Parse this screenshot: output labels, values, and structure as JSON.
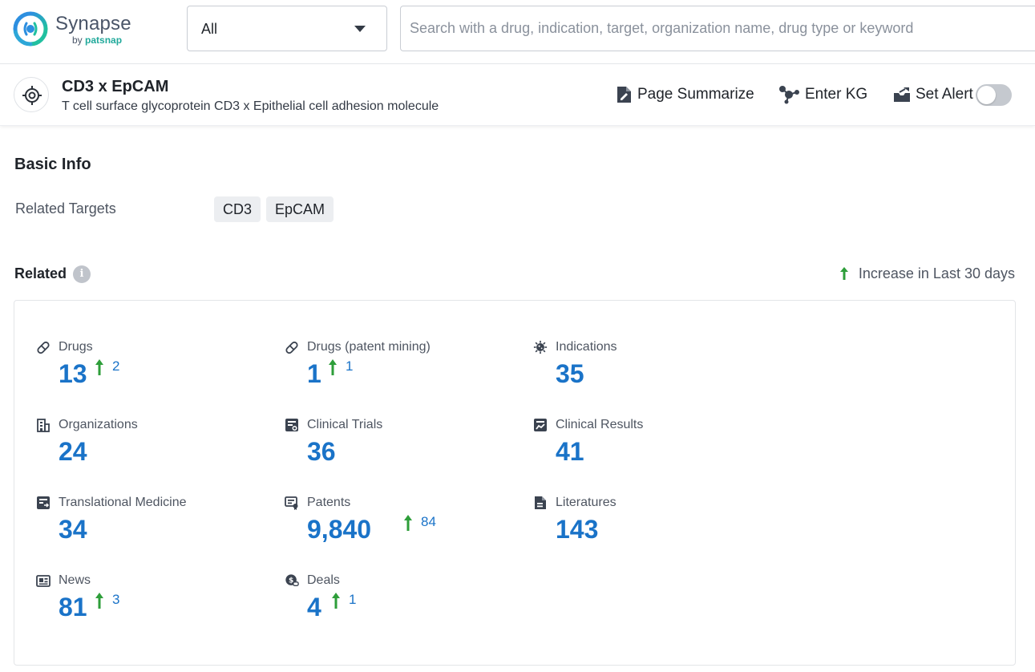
{
  "header": {
    "brand_name": "Synapse",
    "brand_by": "by",
    "brand_vendor": "patsnap",
    "scope_value": "All",
    "search_placeholder": "Search with a drug, indication, target, organization name, drug type or keyword"
  },
  "entity": {
    "title": "CD3 x EpCAM",
    "subtitle": "T cell surface glycoprotein CD3 x Epithelial cell adhesion molecule",
    "actions": {
      "summarize": "Page Summarize",
      "kg": "Enter KG",
      "alert": "Set Alert"
    },
    "alert_enabled": false
  },
  "basic_info": {
    "title": "Basic Info",
    "related_targets_label": "Related Targets",
    "targets": [
      "CD3",
      "EpCAM"
    ]
  },
  "related": {
    "title": "Related",
    "legend": "Increase in Last 30 days",
    "stats": [
      {
        "label": "Drugs",
        "value": "13",
        "increase": "2",
        "icon": "pill-icon"
      },
      {
        "label": "Drugs (patent mining)",
        "value": "1",
        "increase": "1",
        "icon": "pill-icon"
      },
      {
        "label": "Indications",
        "value": "35",
        "increase": null,
        "icon": "virus-icon"
      },
      {
        "label": "Organizations",
        "value": "24",
        "increase": null,
        "icon": "building-icon"
      },
      {
        "label": "Clinical Trials",
        "value": "36",
        "increase": null,
        "icon": "clipboard-icon"
      },
      {
        "label": "Clinical Results",
        "value": "41",
        "increase": null,
        "icon": "results-icon"
      },
      {
        "label": "Translational Medicine",
        "value": "34",
        "increase": null,
        "icon": "translational-icon"
      },
      {
        "label": "Patents",
        "value": "9,840",
        "increase": "84",
        "icon": "patent-icon"
      },
      {
        "label": "Literatures",
        "value": "143",
        "increase": null,
        "icon": "document-icon"
      },
      {
        "label": "News",
        "value": "81",
        "increase": "3",
        "icon": "news-icon"
      },
      {
        "label": "Deals",
        "value": "4",
        "increase": "1",
        "icon": "deals-icon"
      }
    ]
  },
  "colors": {
    "accent": "#1a73c8",
    "increase_arrow": "#2e9e3a",
    "brand_teal": "#21a99b"
  }
}
